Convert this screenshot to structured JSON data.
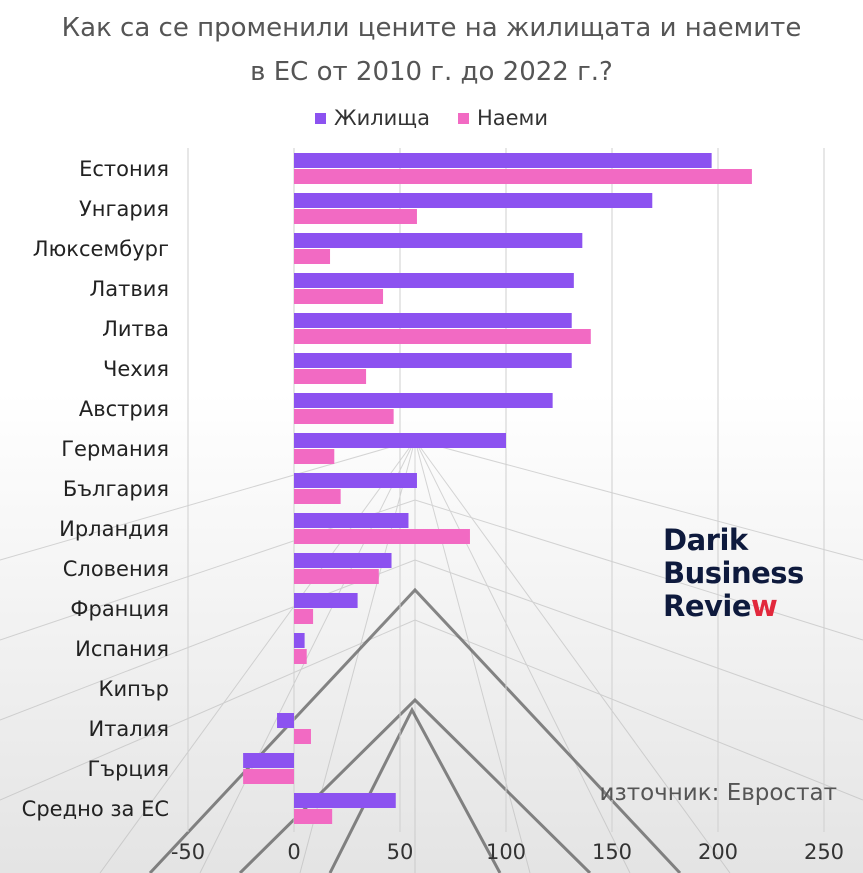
{
  "title_line1": "Как са се променили цените на жилищата и наемите",
  "title_line2": "в ЕС от 2010 г. до 2022 г.?",
  "source_text": "източник: Евростат",
  "logo": {
    "line1": "Darik",
    "line2": "Business",
    "line3_main": "Revie",
    "line3_accent": "w"
  },
  "colors": {
    "housing": "#8c52f0",
    "rent": "#f26ac3",
    "grid": "#cfcfcf"
  },
  "chart_data": {
    "type": "bar",
    "orientation": "horizontal",
    "title": "Как са се променили цените на жилищата и наемите в ЕС от 2010 г. до 2022 г.?",
    "categories": [
      "Естония",
      "Унгария",
      "Люксембург",
      "Латвия",
      "Литва",
      "Чехия",
      "Австрия",
      "Германия",
      "България",
      "Ирландия",
      "Словения",
      "Франция",
      "Испания",
      "Кипър",
      "Италия",
      "Гърция",
      "Средно за ЕС"
    ],
    "series": [
      {
        "name": "Жилища",
        "values": [
          197,
          169,
          136,
          132,
          131,
          131,
          122,
          100,
          58,
          54,
          46,
          30,
          5,
          0,
          -8,
          -24,
          48
        ]
      },
      {
        "name": "Наеми",
        "values": [
          216,
          58,
          17,
          42,
          140,
          34,
          47,
          19,
          22,
          83,
          40,
          9,
          6,
          0,
          8,
          -24,
          18
        ]
      }
    ],
    "xlim": [
      -50,
      250
    ],
    "xticks": [
      -50,
      0,
      50,
      100,
      150,
      200,
      250
    ],
    "grid": true,
    "legend": "top"
  }
}
